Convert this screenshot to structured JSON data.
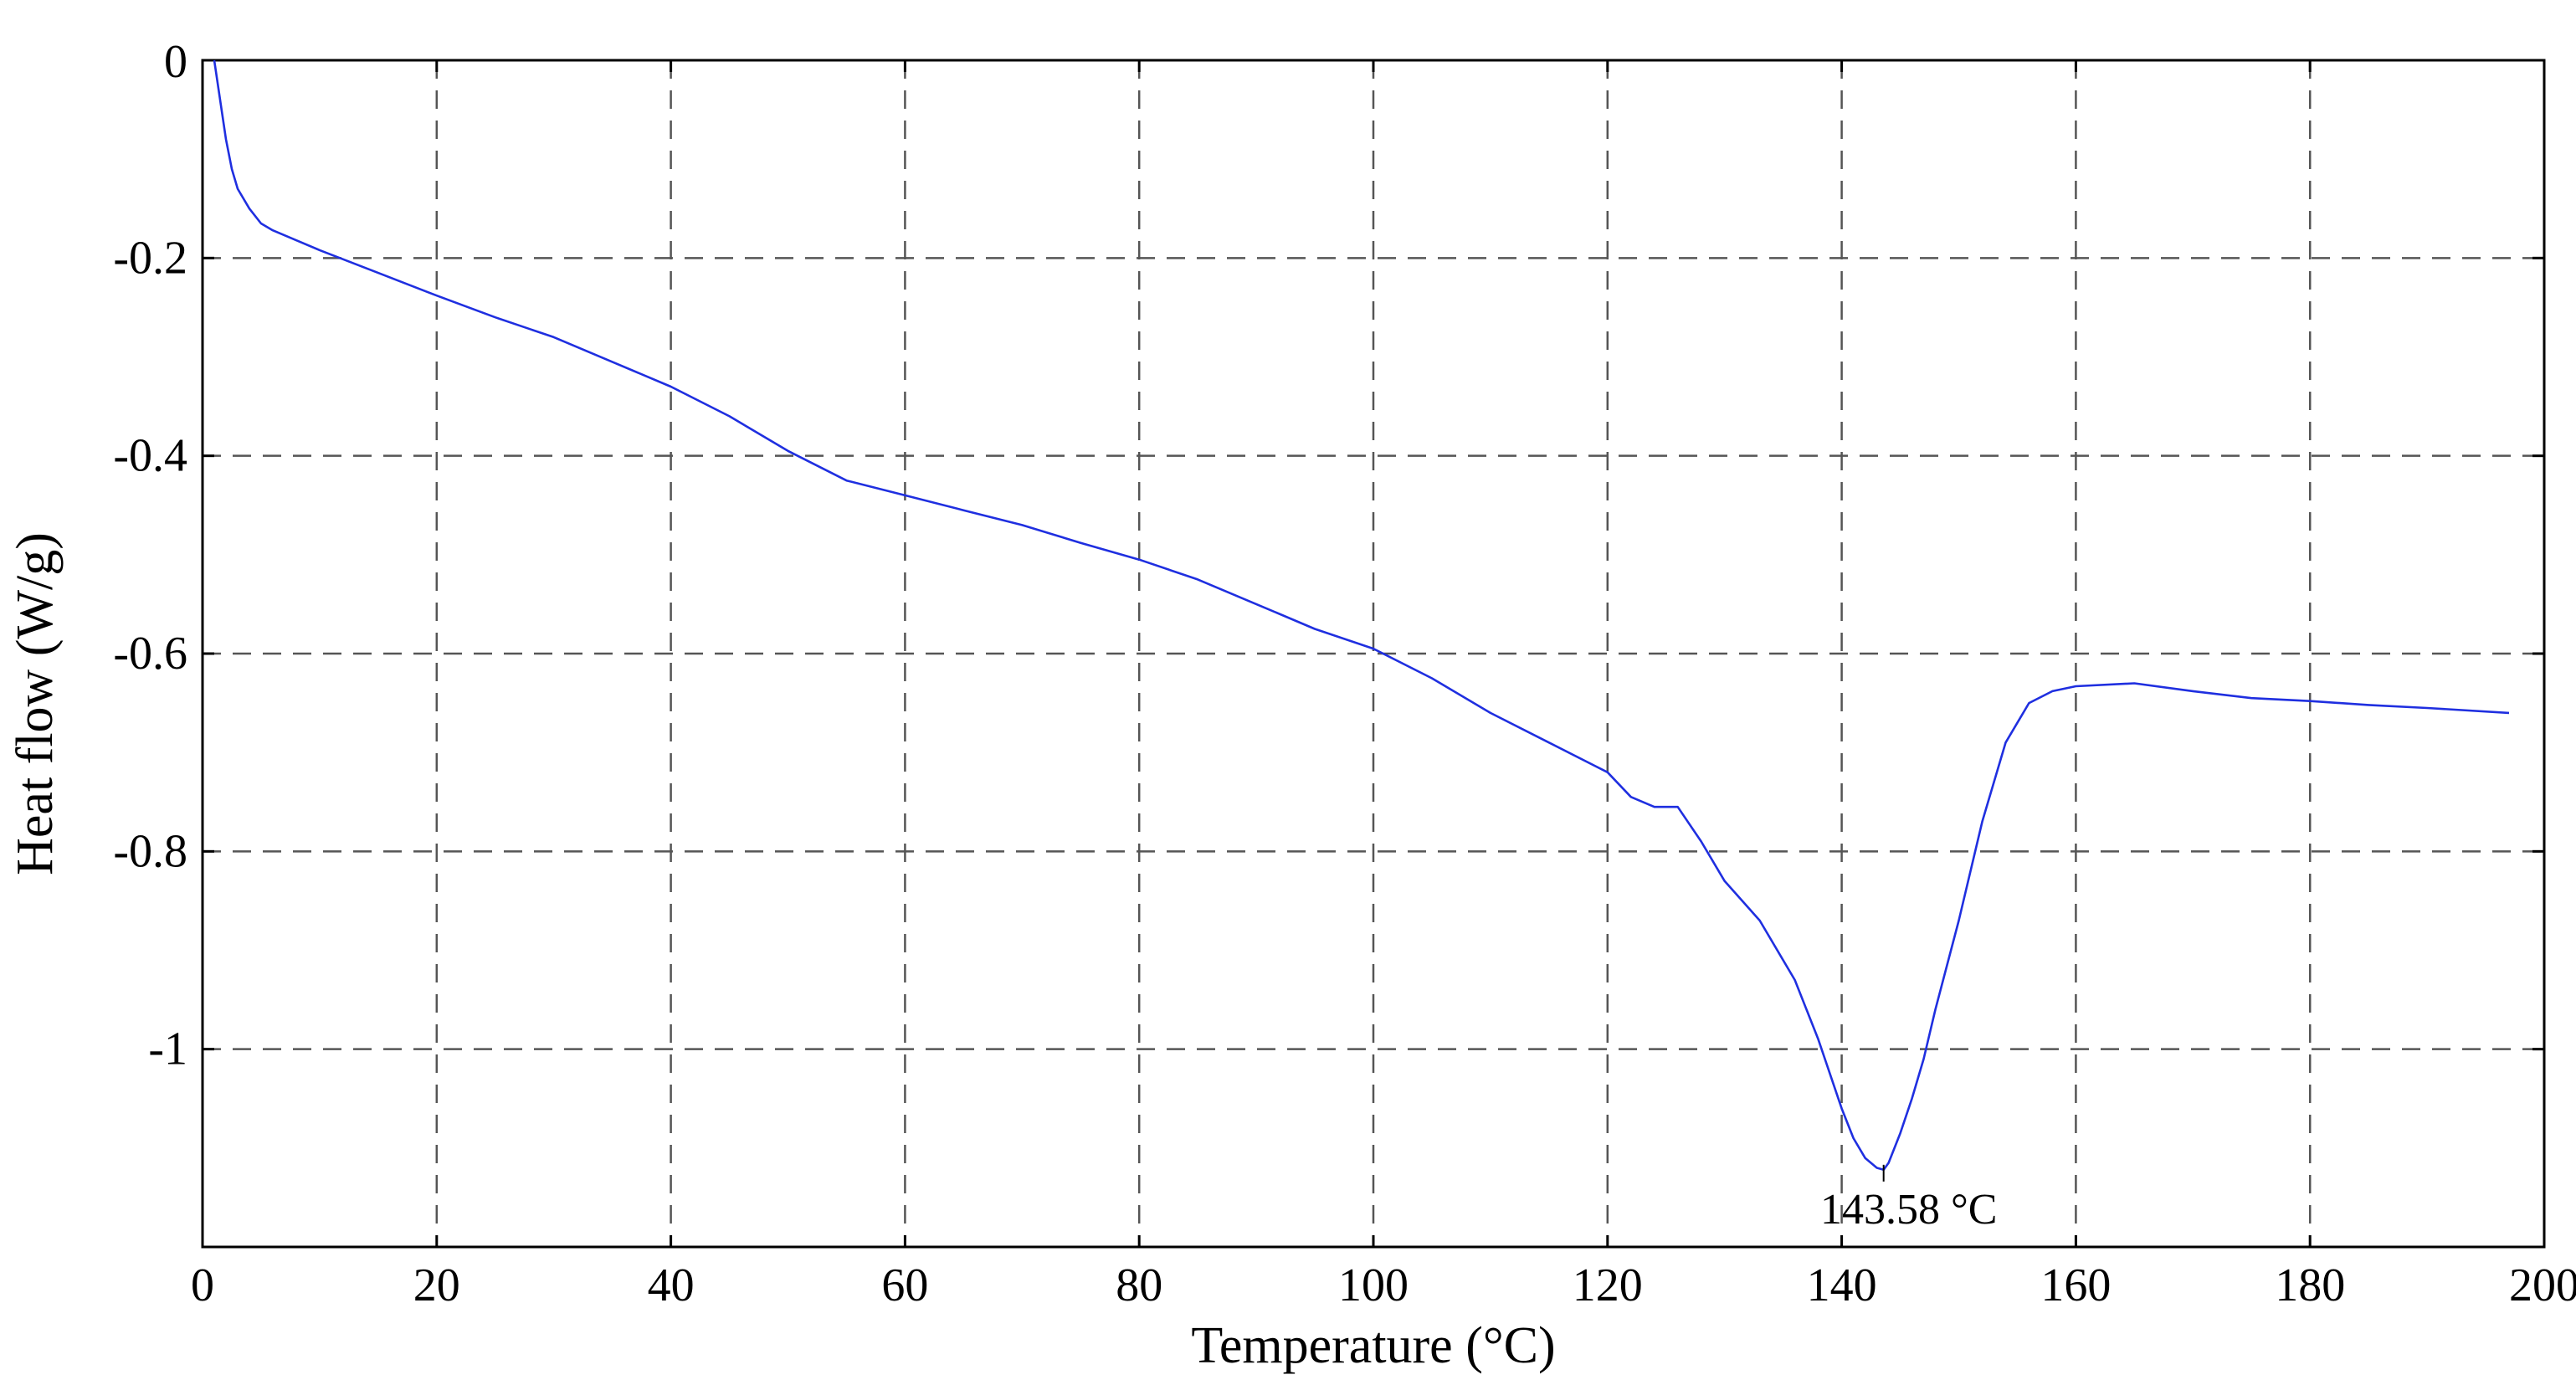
{
  "chart_data": {
    "type": "line",
    "title": "",
    "xlabel": "Temperature (°C)",
    "ylabel": "Heat flow (W/g)",
    "xlim": [
      0,
      200
    ],
    "ylim": [
      -1.2,
      0
    ],
    "grid": true,
    "xticks": [
      0,
      20,
      40,
      60,
      80,
      100,
      120,
      140,
      160,
      180,
      200
    ],
    "xtick_labels": [
      "0",
      "20",
      "40",
      "60",
      "80",
      "100",
      "120",
      "140",
      "160",
      "180",
      "200"
    ],
    "yticks": [
      0,
      -0.2,
      -0.4,
      -0.6,
      -0.8,
      -1
    ],
    "ytick_labels": [
      "0",
      "-0.2",
      "-0.4",
      "-0.6",
      "-0.8",
      "-1"
    ],
    "colors": {
      "series": "#1f2fe0",
      "grid": "#555555",
      "axis": "#000000"
    },
    "series": [
      {
        "x": [
          1,
          1.5,
          2,
          2.5,
          3,
          4,
          5,
          6,
          8,
          10,
          15,
          20,
          25,
          30,
          35,
          40,
          45,
          50,
          55,
          60,
          65,
          70,
          75,
          80,
          85,
          90,
          95,
          100,
          105,
          110,
          115,
          120,
          122,
          124,
          126,
          128,
          130,
          133,
          136,
          138,
          140,
          141,
          142,
          143,
          143.58,
          144,
          145,
          146,
          147,
          148,
          150,
          152,
          154,
          156,
          158,
          160,
          165,
          170,
          175,
          180,
          185,
          190,
          197
        ],
        "y": [
          0,
          -0.04,
          -0.08,
          -0.11,
          -0.13,
          -0.15,
          -0.165,
          -0.172,
          -0.182,
          -0.192,
          -0.215,
          -0.238,
          -0.26,
          -0.28,
          -0.305,
          -0.33,
          -0.36,
          -0.395,
          -0.425,
          -0.44,
          -0.455,
          -0.47,
          -0.488,
          -0.505,
          -0.525,
          -0.55,
          -0.575,
          -0.595,
          -0.625,
          -0.66,
          -0.69,
          -0.72,
          -0.745,
          -0.755,
          -0.755,
          -0.79,
          -0.83,
          -0.87,
          -0.93,
          -0.99,
          -1.06,
          -1.09,
          -1.11,
          -1.12,
          -1.122,
          -1.115,
          -1.085,
          -1.05,
          -1.01,
          -0.96,
          -0.87,
          -0.77,
          -0.69,
          -0.65,
          -0.638,
          -0.633,
          -0.63,
          -0.638,
          -0.645,
          -0.648,
          -0.652,
          -0.655,
          -0.66
        ]
      }
    ],
    "annotations": [
      {
        "x": 143.58,
        "y": -1.122,
        "text": "143.58 °C"
      }
    ]
  }
}
